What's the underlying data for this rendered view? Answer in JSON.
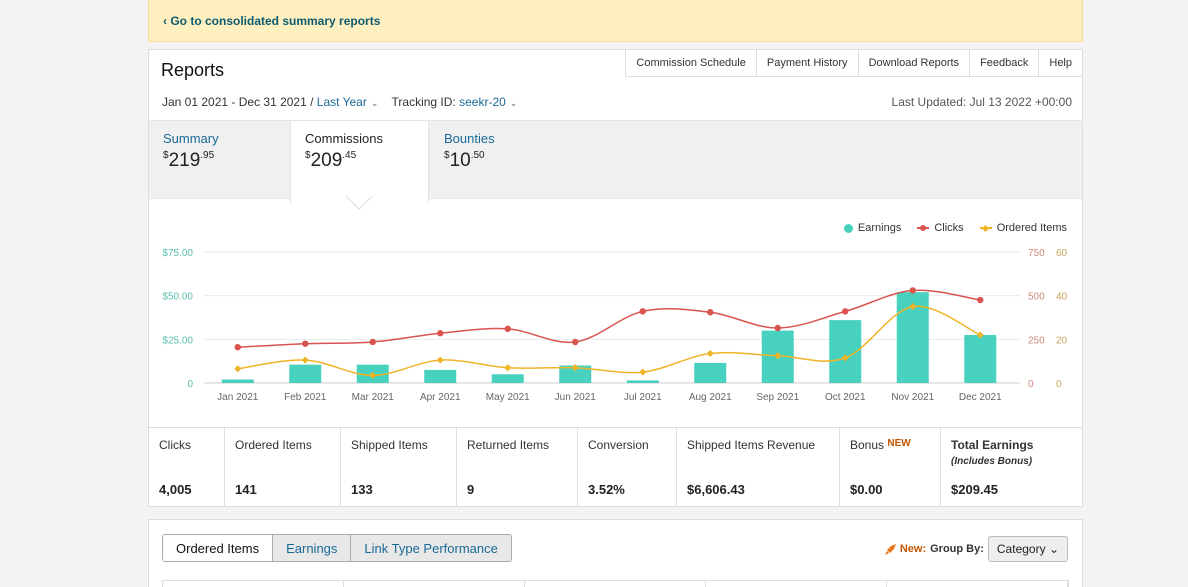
{
  "banner": {
    "text": "‹ Go to consolidated summary reports"
  },
  "header": {
    "title": "Reports",
    "nav": [
      "Commission Schedule",
      "Payment History",
      "Download Reports",
      "Feedback",
      "Help"
    ],
    "date_range": "Jan 01 2021 - Dec 31 2021 /",
    "period": "Last Year",
    "tracking_label": "Tracking ID:",
    "tracking_id": "seekr-20",
    "last_updated": "Last Updated: Jul 13 2022 +00:00"
  },
  "summary_tabs": [
    {
      "label": "Summary",
      "currency": "$",
      "whole": "219",
      "cents": ".95"
    },
    {
      "label": "Commissions",
      "currency": "$",
      "whole": "209",
      "cents": ".45"
    },
    {
      "label": "Bounties",
      "currency": "$",
      "whole": "10",
      "cents": ".50"
    }
  ],
  "legend": {
    "earnings": "Earnings",
    "clicks": "Clicks",
    "ordered": "Ordered Items"
  },
  "colors": {
    "earnings": "#48d1bf",
    "clicks": "#d9534f",
    "ordered": "#f0b429",
    "link": "#1a6a96",
    "banner": "#fdefc0"
  },
  "chart_data": {
    "type": "bar",
    "categories": [
      "Jan 2021",
      "Feb 2021",
      "Mar 2021",
      "Apr 2021",
      "May 2021",
      "Jun 2021",
      "Jul 2021",
      "Aug 2021",
      "Sep 2021",
      "Oct 2021",
      "Nov 2021",
      "Dec 2021"
    ],
    "y_left_ticks": [
      "$75.00",
      "$50.00",
      "$25.00",
      "0"
    ],
    "y_clicks_ticks": [
      "750",
      "500",
      "250",
      "0"
    ],
    "y_items_ticks": [
      "60",
      "40",
      "20",
      "0"
    ],
    "ylim_earnings": [
      0,
      75
    ],
    "ylim_clicks": [
      0,
      750
    ],
    "ylim_items": [
      0,
      60
    ],
    "series": [
      {
        "name": "Earnings",
        "axis": "left",
        "type": "bar",
        "values": [
          2,
          10.5,
          10.5,
          7.5,
          5,
          10,
          1.5,
          11.5,
          30,
          36,
          52,
          27.5
        ]
      },
      {
        "name": "Clicks",
        "axis": "clicks",
        "type": "line",
        "values": [
          205,
          225,
          235,
          285,
          310,
          235,
          410,
          405,
          315,
          410,
          530,
          475
        ]
      },
      {
        "name": "Ordered Items",
        "axis": "items",
        "type": "line",
        "values": [
          6.5,
          10.5,
          3.5,
          10.5,
          7,
          7,
          5,
          13.5,
          12.5,
          11.5,
          35,
          22
        ]
      }
    ]
  },
  "metrics": [
    {
      "label": "Clicks",
      "value": "4,005"
    },
    {
      "label": "Ordered Items",
      "value": "141"
    },
    {
      "label": "Shipped Items",
      "value": "133"
    },
    {
      "label": "Returned Items",
      "value": "9"
    },
    {
      "label": "Conversion",
      "value": "3.52%"
    },
    {
      "label": "Shipped Items Revenue",
      "value": "$6,606.43"
    },
    {
      "label": "Bonus",
      "badge": "NEW",
      "value": "$0.00"
    },
    {
      "label": "Total Earnings",
      "sub": "(Includes Bonus)",
      "value": "$209.45"
    }
  ],
  "bottom": {
    "tabs": [
      "Ordered Items",
      "Earnings",
      "Link Type Performance"
    ],
    "new_label": "New:",
    "group_by_label": "Group By:",
    "group_by_value": "Category"
  }
}
